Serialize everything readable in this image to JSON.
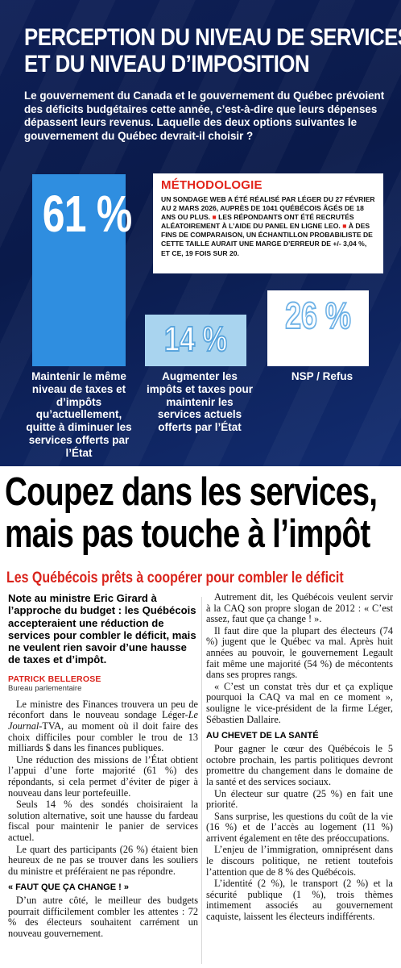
{
  "infographic": {
    "title_line1": "PERCEPTION DU NIVEAU DE SERVICES",
    "title_line2": "ET DU NIVEAU D’IMPOSITION",
    "intro": "Le gouvernement du Canada et le gouvernement du Québec prévoient des déficits budgétaires cette année, c’est-à-dire que leurs dépenses dépassent leurs revenus. Laquelle des deux options suivantes le gouvernement du Québec devrait-il choisir ?",
    "methodology": {
      "title": "MÉTHODOLOGIE",
      "text_1": "Un sondage web a été réalisé par Léger du 27 février au 2 mars 2026, auprès de 1041 Québécois âgés de 18 ans ou plus. ",
      "square": "■",
      "text_2": " Les répondants ont été recrutés aléatoirement à l’aide du panel en ligne LEO. ",
      "text_3": " À des fins de comparaison, un échantillon probabiliste de cette taille aurait une marge d’erreur de +/- 3,04 %, et ce, 19 fois sur 20."
    },
    "colors": {
      "bar1": "#2f8ee0",
      "bar2": "#a9d4ef",
      "bar3": "#ffffff",
      "background": "#0e1f56"
    }
  },
  "chart_data": {
    "type": "bar",
    "categories": [
      "Maintenir le même niveau de taxes et d’impôts qu’actuellement, quitte à diminuer les services offerts par l’État",
      "Augmenter les impôts et taxes pour maintenir les services actuels offerts par l’État",
      "NSP / Refus"
    ],
    "values": [
      61,
      14,
      26
    ],
    "value_labels": [
      "61 %",
      "14 %",
      "26 %"
    ]
  },
  "article": {
    "headline_line1": "Coupez dans les services,",
    "headline_line2": "mais pas touche à l’impôt",
    "subhead": "Les Québécois prêts à coopérer pour combler le déficit",
    "lead": "Note au ministre Eric Girard à l’approche du budget : les Québécois accepteraient une réduction de services pour combler le déficit, mais ne veulent rien savoir d’une hausse de taxes et d’impôt.",
    "author": "PATRICK BELLEROSE",
    "author_role": "Bureau parlementaire",
    "left_paragraphs": {
      "p1_a": "Le ministre des Finances trouvera un peu de réconfort dans le nouveau sondage Léger-",
      "p1_italic": "Le Journal",
      "p1_b": "-TVA, au moment où il doit faire des choix difficiles pour combler le trou de 13 milliards $ dans les finances publiques.",
      "p2": "Une réduction des missions de l’État obtient l’appui d’une forte majorité (61 %) des répondants, si cela permet d’éviter de piger à nouveau dans leur portefeuille.",
      "p3": "Seuls 14 % des sondés choisiraient la solution alternative, soit une hausse du fardeau fiscal pour maintenir le panier de services actuel.",
      "p4": "Le quart des participants (26 %) étaient bien heureux de ne pas se trouver dans les souliers du ministre et préféraient ne pas répondre.",
      "interhead": "« FAUT QUE ÇA CHANGE ! »",
      "p5": "D’un autre côté, le meilleur des budgets pourrait difficilement combler les attentes : 72 % des électeurs souhaitent carrément un nouveau gouvernement."
    },
    "right_paragraphs": {
      "p1": "Autrement dit, les Québécois veulent servir à la CAQ son propre slogan de 2012 : « C’est assez, faut que ça change ! ».",
      "p2": "Il faut dire que la plupart des électeurs (74 %) jugent que le Québec va mal. Après huit années au pouvoir, le gouvernement Legault fait même une majorité (54 %) de mécontents dans ses propres rangs.",
      "p3": "« C’est un constat très dur et ça explique pourquoi la CAQ va mal en ce moment », souligne le vice-président de la firme Léger, Sébastien Dallaire.",
      "interhead": "AU CHEVET DE LA SANTÉ",
      "p4": "Pour gagner le cœur des Québécois le 5 octobre prochain, les partis politiques devront promettre du changement dans le domaine de la santé et des services sociaux.",
      "p5": "Un électeur sur quatre (25 %) en fait une priorité.",
      "p6": "Sans surprise, les questions du coût de la vie (16 %) et de l’accès au logement (11 %) arrivent également en tête des préoccupations.",
      "p7": "L’enjeu de l’immigration, omniprésent dans le discours politique, ne retient toutefois l’attention que de 8 % des Québécois.",
      "p8": "L’identité (2 %), le transport (2 %) et la sécurité publique (1 %), trois thèmes intimement associés au gouvernement caquiste, laissent les électeurs indifférents."
    },
    "colors": {
      "accent": "#d9231b"
    }
  }
}
